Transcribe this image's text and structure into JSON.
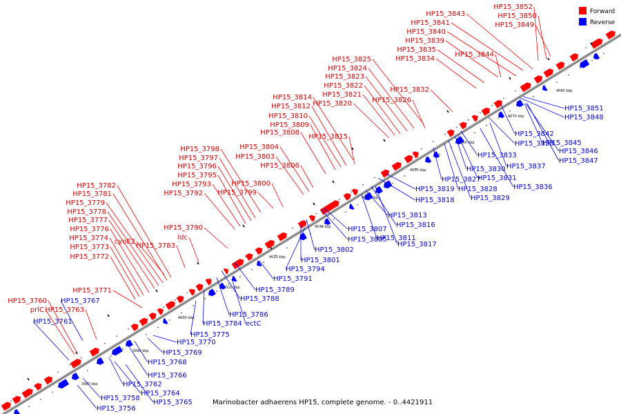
{
  "caption": "Marinobacter adhaerens HP15, complete genome. - 0..4421911",
  "legend": {
    "forward": {
      "label": "Forward",
      "color": "#ff0000"
    },
    "reverse": {
      "label": "Reverse",
      "color": "#0000ff"
    }
  },
  "scale_ticks": [
    "3980 kbp",
    "3990 kbp",
    "4000 kbp",
    "4010 kbp",
    "4020 kbp",
    "4030 kbp",
    "4040 kbp",
    "4050 kbp",
    "4060 kbp",
    "4070 kbp",
    "4080 kbp"
  ],
  "forward_labels": [
    "HP15_3852",
    "HP15_3850",
    "HP15_3849",
    "HP15_3843",
    "HP15_3841",
    "HP15_3840",
    "HP15_3839",
    "HP15_3835",
    "HP15_3834",
    "HP15_3844",
    "HP15_3825",
    "HP15_3824",
    "HP15_3823",
    "HP15_3822",
    "HP15_3821",
    "HP15_3820",
    "HP15_3832",
    "HP15_3826",
    "HP15_3814",
    "HP15_3812",
    "HP15_3810",
    "HP15_3809",
    "HP15_3808",
    "HP15_3815",
    "HP15_3798",
    "HP15_3797",
    "HP15_3796",
    "HP15_3795",
    "HP15_3793",
    "HP15_3792",
    "HP15_3804",
    "HP15_3803",
    "HP15_3806",
    "HP15_3800",
    "HP15_3799",
    "HP15_3782",
    "HP15_3781",
    "HP15_3779",
    "HP15_3778",
    "HP15_3777",
    "HP15_3776",
    "HP15_3774",
    "HP15_3773",
    "HP15_3772",
    "cyoE2",
    "HP15_3783",
    "HP15_3790",
    "ldc",
    "HP15_3771",
    "HP15_3760",
    "prlC",
    "HP15_3763"
  ],
  "reverse_labels": [
    "HP15_3851",
    "HP15_3848",
    "HP15_3842",
    "HP15_3838",
    "HP15_3845",
    "HP15_3846",
    "HP15_3847",
    "HP15_3837",
    "HP15_3836",
    "HP15_3833",
    "HP15_3830",
    "HP15_3831",
    "HP15_3827",
    "HP15_3828",
    "HP15_3829",
    "HP15_3819",
    "HP15_3818",
    "HP15_3813",
    "HP15_3816",
    "HP15_3817",
    "HP15_3811",
    "HP15_3807",
    "HP15_3805",
    "HP15_3802",
    "HP15_3801",
    "HP15_3794",
    "HP15_3791",
    "HP15_3789",
    "HP15_3788",
    "HP15_3786",
    "ectC",
    "HP15_3784",
    "HP15_3775",
    "HP15_3770",
    "HP15_3769",
    "HP15_3768",
    "HP15_3766",
    "HP15_3762",
    "HP15_3764",
    "HP15_3765",
    "HP15_3758",
    "HP15_3756",
    "HP15_3767",
    "HP15_3761"
  ]
}
